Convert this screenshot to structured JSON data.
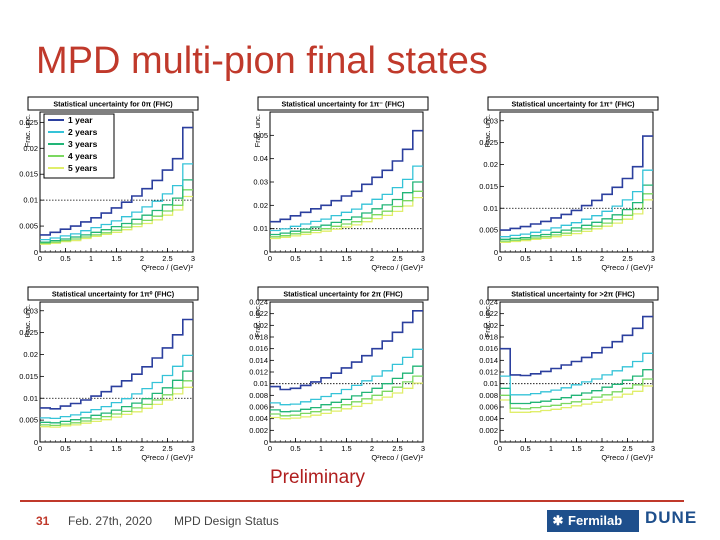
{
  "slide": {
    "title": "MPD multi-pion final states",
    "preliminary": "Preliminary"
  },
  "footer": {
    "page": "31",
    "date": "Feb. 27th, 2020",
    "title": "MPD Design Status",
    "fermilab": "Fermilab",
    "dune": "DUNE"
  },
  "colors": {
    "title": "#c0392b",
    "y1": "#2b3f9e",
    "y2": "#35c3d8",
    "y3": "#22b577",
    "y4": "#7bd860",
    "y5": "#e0ee6a"
  },
  "chart_data": [
    {
      "type": "line",
      "title": "Statistical uncertainty for 0π (FHC)",
      "xlabel": "Q²reco / (GeV)²",
      "ylabel": "Frac. unc.",
      "xlim": [
        0,
        3
      ],
      "ylim": [
        0,
        0.027
      ],
      "yticks": [
        0.005,
        0.01,
        0.015,
        0.02,
        0.025
      ],
      "yticklabels": [
        "0.005",
        "0.01",
        "0.015",
        "0.02",
        "0.025"
      ],
      "refline": 0.01,
      "legend": [
        "1 year",
        "2 years",
        "3 years",
        "4 years",
        "5 years"
      ],
      "x": [
        0,
        0.2,
        0.4,
        0.6,
        0.8,
        1,
        1.2,
        1.4,
        1.6,
        1.8,
        2,
        2.2,
        2.4,
        2.6,
        2.8
      ],
      "series": [
        {
          "name": "1 year",
          "values": [
            0.0033,
            0.0038,
            0.0044,
            0.005,
            0.0058,
            0.0066,
            0.0075,
            0.0085,
            0.0096,
            0.0108,
            0.0122,
            0.0138,
            0.0158,
            0.018,
            0.024
          ]
        },
        {
          "name": "2 years",
          "values": [
            0.0024,
            0.0027,
            0.0031,
            0.0035,
            0.0041,
            0.0047,
            0.0053,
            0.006,
            0.0068,
            0.0077,
            0.0087,
            0.0098,
            0.0112,
            0.0128,
            0.017
          ]
        },
        {
          "name": "3 years",
          "values": [
            0.0019,
            0.0022,
            0.0025,
            0.0029,
            0.0033,
            0.0038,
            0.0043,
            0.0049,
            0.0055,
            0.0063,
            0.0071,
            0.008,
            0.0091,
            0.0104,
            0.0139
          ]
        },
        {
          "name": "4 years",
          "values": [
            0.0017,
            0.0019,
            0.0022,
            0.0025,
            0.0029,
            0.0033,
            0.0037,
            0.0042,
            0.0048,
            0.0054,
            0.0061,
            0.0069,
            0.0079,
            0.009,
            0.012
          ]
        },
        {
          "name": "5 years",
          "values": [
            0.0015,
            0.0017,
            0.002,
            0.0022,
            0.0026,
            0.003,
            0.0034,
            0.0038,
            0.0043,
            0.0049,
            0.0055,
            0.0062,
            0.0071,
            0.0081,
            0.0107
          ]
        }
      ]
    },
    {
      "type": "line",
      "title": "Statistical uncertainty for 1π⁻ (FHC)",
      "xlabel": "Q²reco / (GeV)²",
      "ylabel": "Frac. unc.",
      "xlim": [
        0,
        3
      ],
      "ylim": [
        0,
        0.06
      ],
      "yticks": [
        0.01,
        0.02,
        0.03,
        0.04,
        0.05
      ],
      "yticklabels": [
        "0.01",
        "0.02",
        "0.03",
        "0.04",
        "0.05"
      ],
      "refline": 0.01,
      "legend": [],
      "x": [
        0,
        0.2,
        0.4,
        0.6,
        0.8,
        1,
        1.2,
        1.4,
        1.6,
        1.8,
        2,
        2.2,
        2.4,
        2.6,
        2.8
      ],
      "series": [
        {
          "name": "1 year",
          "values": [
            0.013,
            0.014,
            0.0155,
            0.017,
            0.0185,
            0.02,
            0.022,
            0.024,
            0.026,
            0.029,
            0.032,
            0.035,
            0.039,
            0.044,
            0.052
          ]
        },
        {
          "name": "2 years",
          "values": [
            0.0092,
            0.0099,
            0.011,
            0.012,
            0.0131,
            0.0141,
            0.0156,
            0.017,
            0.0184,
            0.0205,
            0.0226,
            0.0247,
            0.0276,
            0.0311,
            0.0368
          ]
        },
        {
          "name": "3 years",
          "values": [
            0.0075,
            0.0081,
            0.0089,
            0.0098,
            0.0107,
            0.0115,
            0.0127,
            0.0139,
            0.015,
            0.0167,
            0.0185,
            0.0202,
            0.0225,
            0.0254,
            0.03
          ]
        },
        {
          "name": "4 years",
          "values": [
            0.0065,
            0.007,
            0.0078,
            0.0085,
            0.0093,
            0.01,
            0.011,
            0.012,
            0.013,
            0.0145,
            0.016,
            0.0175,
            0.0195,
            0.022,
            0.026
          ]
        },
        {
          "name": "5 years",
          "values": [
            0.0058,
            0.0063,
            0.0069,
            0.0076,
            0.0083,
            0.0089,
            0.0098,
            0.0107,
            0.0116,
            0.013,
            0.0143,
            0.0157,
            0.0174,
            0.0197,
            0.0233
          ]
        }
      ]
    },
    {
      "type": "line",
      "title": "Statistical uncertainty for 1π⁺ (FHC)",
      "xlabel": "Q²reco / (GeV)²",
      "ylabel": "Frac. unc.",
      "xlim": [
        0,
        3
      ],
      "ylim": [
        0,
        0.032
      ],
      "yticks": [
        0.005,
        0.01,
        0.015,
        0.02,
        0.025,
        0.03
      ],
      "yticklabels": [
        "0.005",
        "0.01",
        "0.015",
        "0.02",
        "0.025",
        "0.03"
      ],
      "refline": 0.01,
      "legend": [],
      "x": [
        0,
        0.2,
        0.4,
        0.6,
        0.8,
        1,
        1.2,
        1.4,
        1.6,
        1.8,
        2,
        2.2,
        2.4,
        2.6,
        2.8
      ],
      "series": [
        {
          "name": "1 year",
          "values": [
            0.005,
            0.0054,
            0.0058,
            0.0064,
            0.007,
            0.0078,
            0.0086,
            0.0095,
            0.0106,
            0.0118,
            0.0132,
            0.0148,
            0.0168,
            0.0195,
            0.0265
          ]
        },
        {
          "name": "2 years",
          "values": [
            0.0035,
            0.0038,
            0.0041,
            0.0045,
            0.005,
            0.0055,
            0.0061,
            0.0067,
            0.0075,
            0.0083,
            0.0093,
            0.0105,
            0.0119,
            0.0138,
            0.0187
          ]
        },
        {
          "name": "3 years",
          "values": [
            0.0029,
            0.0031,
            0.0033,
            0.0037,
            0.004,
            0.0045,
            0.005,
            0.0055,
            0.0061,
            0.0068,
            0.0076,
            0.0085,
            0.0097,
            0.0113,
            0.0153
          ]
        },
        {
          "name": "4 years",
          "values": [
            0.0025,
            0.0027,
            0.0029,
            0.0032,
            0.0035,
            0.0039,
            0.0043,
            0.0048,
            0.0053,
            0.0059,
            0.0066,
            0.0074,
            0.0084,
            0.0098,
            0.0133
          ]
        },
        {
          "name": "5 years",
          "values": [
            0.0022,
            0.0024,
            0.0026,
            0.0029,
            0.0031,
            0.0035,
            0.0038,
            0.0042,
            0.0047,
            0.0053,
            0.0059,
            0.0066,
            0.0075,
            0.0087,
            0.0119
          ]
        }
      ]
    },
    {
      "type": "line",
      "title": "Statistical uncertainty for 1π⁰ (FHC)",
      "xlabel": "Q²reco / (GeV)²",
      "ylabel": "Frac. unc.",
      "xlim": [
        0,
        3
      ],
      "ylim": [
        0,
        0.032
      ],
      "yticks": [
        0.005,
        0.01,
        0.015,
        0.02,
        0.025,
        0.03
      ],
      "yticklabels": [
        "0.005",
        "0.01",
        "0.015",
        "0.02",
        "0.025",
        "0.03"
      ],
      "refline": 0.01,
      "legend": [],
      "x": [
        0,
        0.2,
        0.4,
        0.6,
        0.8,
        1,
        1.2,
        1.4,
        1.6,
        1.8,
        2,
        2.2,
        2.4,
        2.6,
        2.8
      ],
      "series": [
        {
          "name": "1 year",
          "values": [
            0.0078,
            0.0076,
            0.0082,
            0.0088,
            0.0096,
            0.0105,
            0.0115,
            0.0127,
            0.014,
            0.0155,
            0.0172,
            0.0192,
            0.0215,
            0.0245,
            0.028
          ]
        },
        {
          "name": "2 years",
          "values": [
            0.0055,
            0.0054,
            0.0058,
            0.0062,
            0.0068,
            0.0074,
            0.0081,
            0.009,
            0.0099,
            0.011,
            0.0122,
            0.0136,
            0.0152,
            0.0173,
            0.0198
          ]
        },
        {
          "name": "3 years",
          "values": [
            0.0045,
            0.0044,
            0.0047,
            0.0051,
            0.0055,
            0.0061,
            0.0066,
            0.0073,
            0.0081,
            0.0089,
            0.0099,
            0.0111,
            0.0124,
            0.0141,
            0.0162
          ]
        },
        {
          "name": "4 years",
          "values": [
            0.0039,
            0.0038,
            0.0041,
            0.0044,
            0.0048,
            0.0053,
            0.0058,
            0.0064,
            0.007,
            0.0078,
            0.0086,
            0.0096,
            0.0108,
            0.0123,
            0.014
          ]
        },
        {
          "name": "5 years",
          "values": [
            0.0035,
            0.0034,
            0.0037,
            0.0039,
            0.0043,
            0.0047,
            0.0051,
            0.0057,
            0.0063,
            0.0069,
            0.0077,
            0.0086,
            0.0096,
            0.011,
            0.0125
          ]
        }
      ]
    },
    {
      "type": "line",
      "title": "Statistical uncertainty for 2π (FHC)",
      "xlabel": "Q²reco / (GeV)²",
      "ylabel": "Frac. unc.",
      "xlim": [
        0,
        3
      ],
      "ylim": [
        0,
        0.024
      ],
      "yticks": [
        0.002,
        0.004,
        0.006,
        0.008,
        0.01,
        0.012,
        0.014,
        0.016,
        0.018,
        0.02,
        0.022,
        0.024
      ],
      "yticklabels": [
        "0.002",
        "0.004",
        "0.006",
        "0.008",
        "0.01",
        "0.012",
        "0.014",
        "0.016",
        "0.018",
        "0.02",
        "0.022",
        "0.024"
      ],
      "refline": 0.01,
      "legend": [],
      "x": [
        0,
        0.2,
        0.4,
        0.6,
        0.8,
        1,
        1.2,
        1.4,
        1.6,
        1.8,
        2,
        2.2,
        2.4,
        2.6,
        2.8
      ],
      "series": [
        {
          "name": "1 year",
          "values": [
            0.0095,
            0.009,
            0.0092,
            0.0097,
            0.0103,
            0.011,
            0.0118,
            0.0127,
            0.0137,
            0.0148,
            0.016,
            0.0173,
            0.0188,
            0.0205,
            0.0225
          ]
        },
        {
          "name": "2 years",
          "values": [
            0.0067,
            0.0064,
            0.0065,
            0.0069,
            0.0073,
            0.0078,
            0.0083,
            0.009,
            0.0097,
            0.0105,
            0.0113,
            0.0122,
            0.0133,
            0.0145,
            0.0159
          ]
        },
        {
          "name": "3 years",
          "values": [
            0.0055,
            0.0052,
            0.0053,
            0.0056,
            0.0059,
            0.0064,
            0.0068,
            0.0073,
            0.0079,
            0.0085,
            0.0092,
            0.01,
            0.0109,
            0.0118,
            0.013
          ]
        },
        {
          "name": "4 years",
          "values": [
            0.0048,
            0.0045,
            0.0046,
            0.0049,
            0.0052,
            0.0055,
            0.0059,
            0.0064,
            0.0069,
            0.0074,
            0.008,
            0.0087,
            0.0094,
            0.0103,
            0.0113
          ]
        },
        {
          "name": "5 years",
          "values": [
            0.0042,
            0.004,
            0.0041,
            0.0043,
            0.0046,
            0.0049,
            0.0053,
            0.0057,
            0.0061,
            0.0066,
            0.0072,
            0.0077,
            0.0084,
            0.0092,
            0.0101
          ]
        }
      ]
    },
    {
      "type": "line",
      "title": "Statistical uncertainty for >2π (FHC)",
      "xlabel": "Q²reco / (GeV)²",
      "ylabel": "Frac. unc.",
      "xlim": [
        0,
        3
      ],
      "ylim": [
        0,
        0.024
      ],
      "yticks": [
        0.002,
        0.004,
        0.006,
        0.008,
        0.01,
        0.012,
        0.014,
        0.016,
        0.018,
        0.02,
        0.022,
        0.024
      ],
      "yticklabels": [
        "0.002",
        "0.004",
        "0.006",
        "0.008",
        "0.01",
        "0.012",
        "0.014",
        "0.016",
        "0.018",
        "0.02",
        "0.022",
        "0.024"
      ],
      "refline": 0.01,
      "legend": [],
      "x": [
        0,
        0.2,
        0.4,
        0.6,
        0.8,
        1,
        1.2,
        1.4,
        1.6,
        1.8,
        2,
        2.2,
        2.4,
        2.6,
        2.8
      ],
      "series": [
        {
          "name": "1 year",
          "values": [
            0.016,
            0.0115,
            0.0114,
            0.0117,
            0.0121,
            0.0126,
            0.0132,
            0.0138,
            0.0145,
            0.0153,
            0.0162,
            0.0172,
            0.0183,
            0.0195,
            0.0215
          ]
        },
        {
          "name": "2 years",
          "values": [
            0.0113,
            0.0081,
            0.0081,
            0.0083,
            0.0086,
            0.0089,
            0.0093,
            0.0098,
            0.0103,
            0.0108,
            0.0115,
            0.0122,
            0.0129,
            0.0138,
            0.0152
          ]
        },
        {
          "name": "3 years",
          "values": [
            0.0092,
            0.0066,
            0.0066,
            0.0068,
            0.007,
            0.0073,
            0.0076,
            0.008,
            0.0084,
            0.0088,
            0.0094,
            0.0099,
            0.0106,
            0.0113,
            0.0124
          ]
        },
        {
          "name": "4 years",
          "values": [
            0.008,
            0.0058,
            0.0057,
            0.0059,
            0.0061,
            0.0063,
            0.0066,
            0.0069,
            0.0073,
            0.0077,
            0.0081,
            0.0086,
            0.0092,
            0.0098,
            0.0108
          ]
        },
        {
          "name": "5 years",
          "values": [
            0.0072,
            0.0051,
            0.0051,
            0.0052,
            0.0054,
            0.0056,
            0.0059,
            0.0062,
            0.0065,
            0.0068,
            0.0072,
            0.0077,
            0.0082,
            0.0087,
            0.0096
          ]
        }
      ]
    }
  ]
}
